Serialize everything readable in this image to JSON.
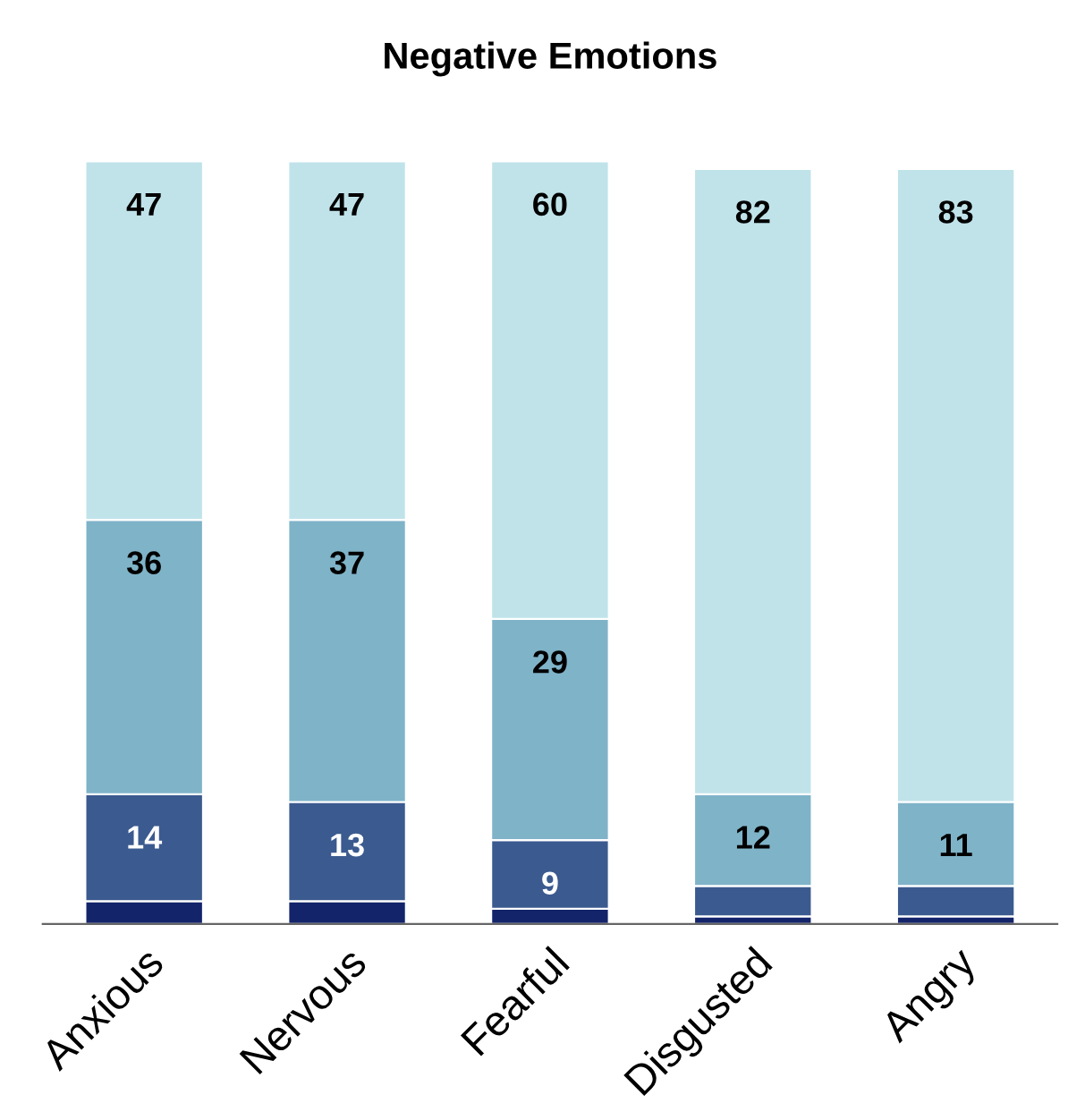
{
  "chart_data": {
    "type": "bar",
    "title": "Negative Emotions",
    "stacked": true,
    "categories": [
      "Anxious",
      "Nervous",
      "Fearful",
      "Disgusted",
      "Angry"
    ],
    "series": [
      {
        "color": "#14246b",
        "values": [
          3,
          3,
          2,
          1,
          1
        ],
        "value_labels": [
          null,
          null,
          null,
          null,
          null
        ]
      },
      {
        "color": "#3b5a8f",
        "values": [
          14,
          13,
          9,
          4,
          4
        ],
        "value_labels": [
          "14",
          "13",
          "9",
          null,
          null
        ]
      },
      {
        "color": "#7fb3c8",
        "values": [
          36,
          37,
          29,
          12,
          11
        ],
        "value_labels": [
          "36",
          "37",
          "29",
          "12",
          "11"
        ]
      },
      {
        "color": "#c0e3ea",
        "values": [
          47,
          47,
          60,
          82,
          83
        ],
        "value_labels": [
          "47",
          "47",
          "60",
          "82",
          "83"
        ]
      }
    ]
  }
}
